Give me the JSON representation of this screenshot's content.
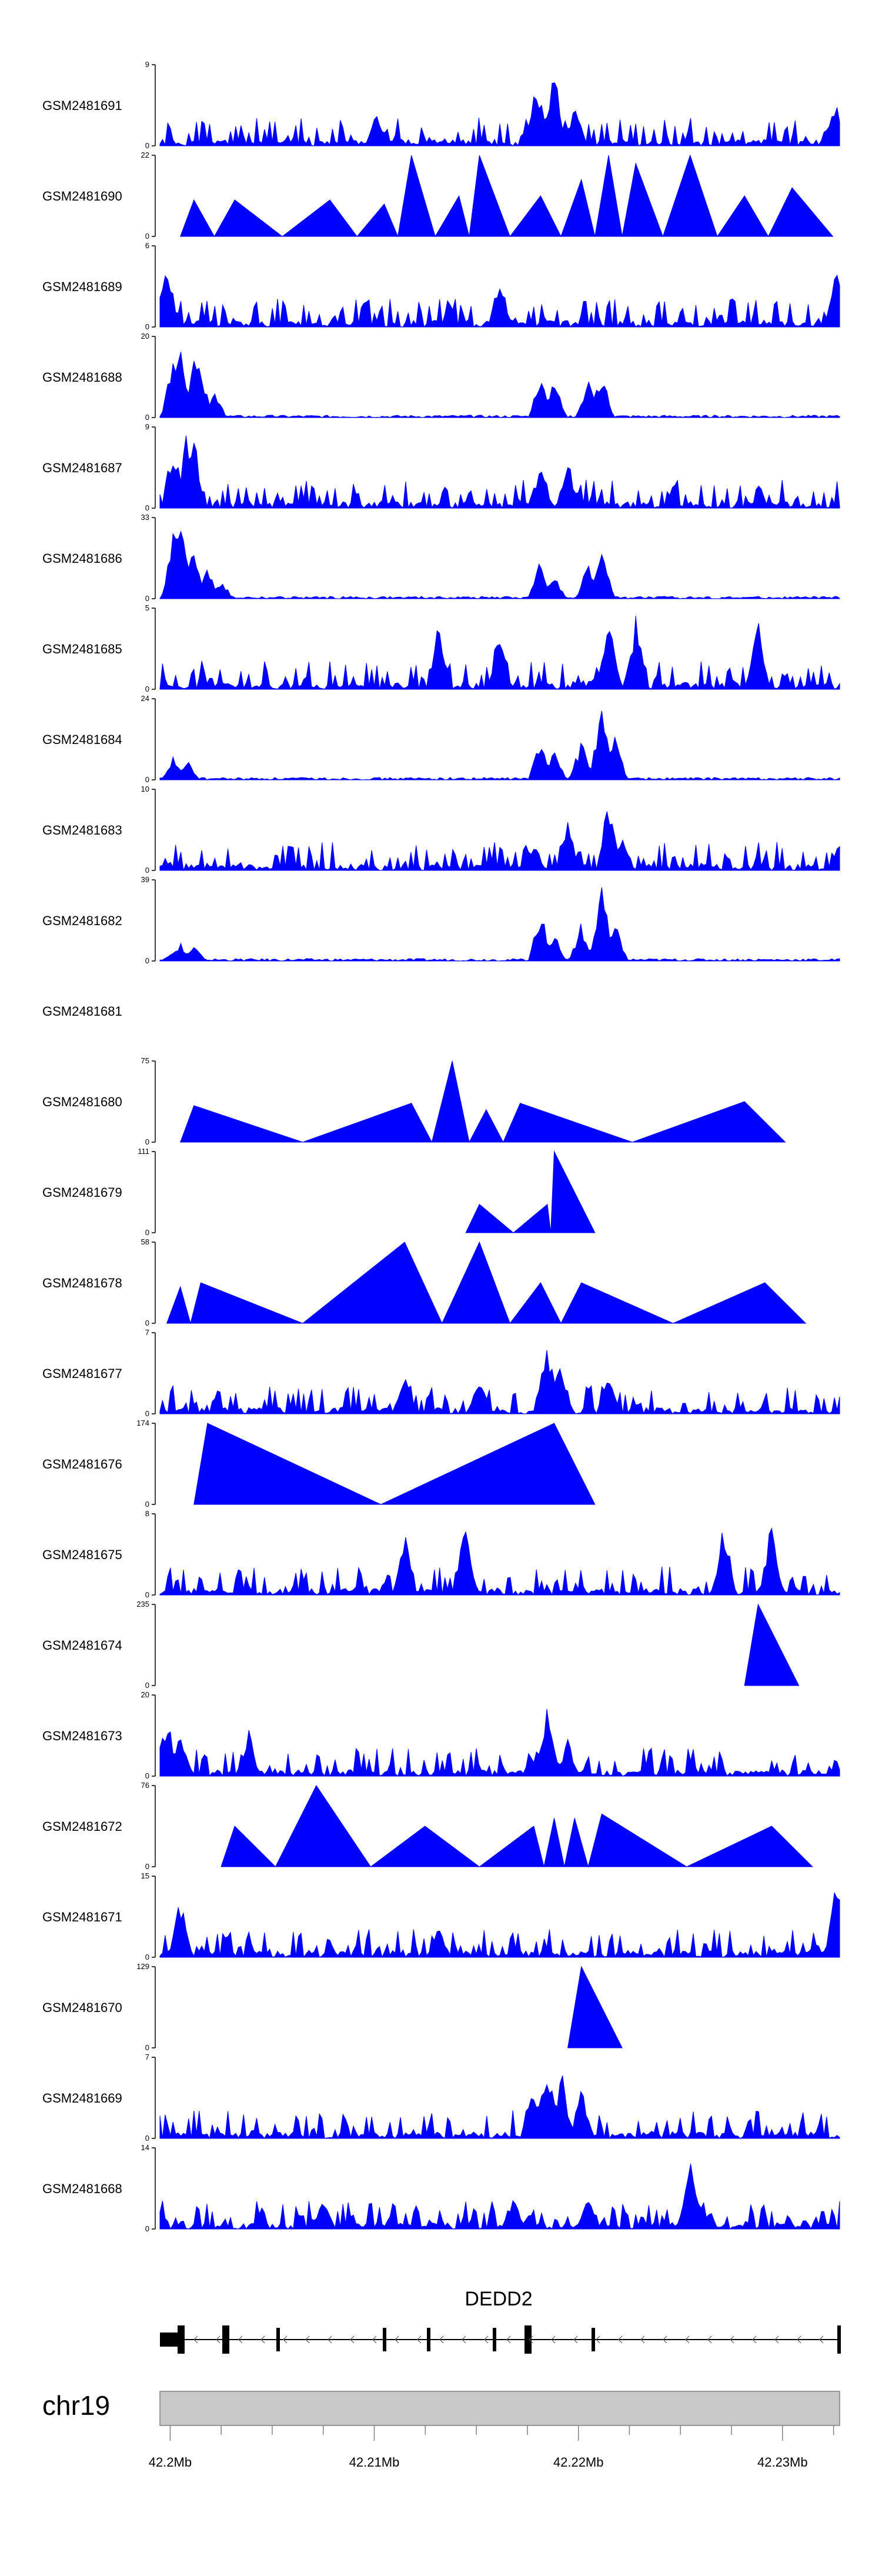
{
  "chart_data": {
    "type": "area",
    "title": "",
    "description_tracks": "Coverage tracks per sample over chr19 region",
    "tracks": [
      {
        "name": "GSM2481691",
        "ymax": 9,
        "profile": "noisy",
        "seed": 11,
        "peaks": [
          [
            0.555,
            0.9
          ],
          [
            0.58,
            1.0
          ],
          [
            0.61,
            0.55
          ],
          [
            0.995,
            0.6
          ],
          [
            0.32,
            0.45
          ]
        ]
      },
      {
        "name": "GSM2481690",
        "ymax": 22,
        "profile": "tent",
        "seed": 12,
        "peaks": [
          [
            0.05,
            0.45
          ],
          [
            0.11,
            0.45
          ],
          [
            0.25,
            0.45
          ],
          [
            0.33,
            0.4
          ],
          [
            0.37,
            1.0
          ],
          [
            0.44,
            0.5
          ],
          [
            0.47,
            1.0
          ],
          [
            0.56,
            0.5
          ],
          [
            0.62,
            0.7
          ],
          [
            0.66,
            1.0
          ],
          [
            0.7,
            0.9
          ],
          [
            0.78,
            1.0
          ],
          [
            0.86,
            0.5
          ],
          [
            0.93,
            0.6
          ]
        ]
      },
      {
        "name": "GSM2481689",
        "ymax": 6,
        "profile": "noisy",
        "seed": 13,
        "peaks": [
          [
            0.01,
            1.0
          ],
          [
            0.995,
            0.8
          ],
          [
            0.5,
            0.7
          ]
        ]
      },
      {
        "name": "GSM2481688",
        "ymax": 20,
        "profile": "cluster",
        "seed": 14,
        "peaks": [
          [
            0.02,
            0.8
          ],
          [
            0.03,
            1.0
          ],
          [
            0.05,
            0.75
          ],
          [
            0.06,
            0.7
          ],
          [
            0.08,
            0.35
          ],
          [
            0.56,
            0.6
          ],
          [
            0.58,
            0.55
          ],
          [
            0.63,
            0.5
          ],
          [
            0.65,
            0.6
          ]
        ]
      },
      {
        "name": "GSM2481687",
        "ymax": 9,
        "profile": "noisy",
        "seed": 15,
        "peaks": [
          [
            0.02,
            0.9
          ],
          [
            0.04,
            1.0
          ],
          [
            0.05,
            0.9
          ],
          [
            0.56,
            0.6
          ],
          [
            0.6,
            0.65
          ]
        ]
      },
      {
        "name": "GSM2481686",
        "ymax": 33,
        "profile": "cluster",
        "seed": 16,
        "peaks": [
          [
            0.02,
            0.9
          ],
          [
            0.03,
            1.0
          ],
          [
            0.05,
            0.75
          ],
          [
            0.07,
            0.4
          ],
          [
            0.09,
            0.25
          ],
          [
            0.56,
            0.5
          ],
          [
            0.58,
            0.3
          ],
          [
            0.63,
            0.45
          ],
          [
            0.65,
            0.7
          ]
        ]
      },
      {
        "name": "GSM2481685",
        "ymax": 5,
        "profile": "noisy",
        "seed": 17,
        "peaks": [
          [
            0.41,
            0.95
          ],
          [
            0.5,
            0.9
          ],
          [
            0.66,
            1.0
          ],
          [
            0.7,
            0.95
          ],
          [
            0.88,
            0.95
          ]
        ]
      },
      {
        "name": "GSM2481684",
        "ymax": 24,
        "profile": "cluster",
        "seed": 18,
        "peaks": [
          [
            0.02,
            0.3
          ],
          [
            0.04,
            0.25
          ],
          [
            0.56,
            0.6
          ],
          [
            0.58,
            0.4
          ],
          [
            0.62,
            0.5
          ],
          [
            0.65,
            1.0
          ],
          [
            0.67,
            0.6
          ]
        ]
      },
      {
        "name": "GSM2481683",
        "ymax": 10,
        "profile": "noisy",
        "seed": 19,
        "peaks": [
          [
            0.55,
            0.4
          ],
          [
            0.6,
            0.6
          ],
          [
            0.66,
            1.0
          ],
          [
            0.68,
            0.5
          ]
        ]
      },
      {
        "name": "GSM2481682",
        "ymax": 39,
        "profile": "cluster",
        "seed": 20,
        "peaks": [
          [
            0.02,
            0.15
          ],
          [
            0.03,
            0.25
          ],
          [
            0.05,
            0.2
          ],
          [
            0.56,
            0.65
          ],
          [
            0.58,
            0.35
          ],
          [
            0.62,
            0.5
          ],
          [
            0.65,
            1.0
          ],
          [
            0.67,
            0.5
          ]
        ]
      },
      {
        "name": "GSM2481681",
        "ymax": null,
        "profile": "empty",
        "seed": 21,
        "peaks": []
      },
      {
        "name": "GSM2481680",
        "ymax": 75,
        "profile": "tent",
        "seed": 22,
        "peaks": [
          [
            0.05,
            0.45
          ],
          [
            0.37,
            0.48
          ],
          [
            0.43,
            1.0
          ],
          [
            0.48,
            0.4
          ],
          [
            0.53,
            0.48
          ],
          [
            0.86,
            0.5
          ]
        ]
      },
      {
        "name": "GSM2481679",
        "ymax": 111,
        "profile": "tent",
        "seed": 23,
        "peaks": [
          [
            0.47,
            0.35
          ],
          [
            0.57,
            0.35
          ],
          [
            0.58,
            1.0
          ]
        ]
      },
      {
        "name": "GSM2481678",
        "ymax": 58,
        "profile": "tent",
        "seed": 24,
        "peaks": [
          [
            0.03,
            0.45
          ],
          [
            0.06,
            0.5
          ],
          [
            0.36,
            1.0
          ],
          [
            0.47,
            1.0
          ],
          [
            0.56,
            0.5
          ],
          [
            0.62,
            0.5
          ],
          [
            0.89,
            0.5
          ]
        ]
      },
      {
        "name": "GSM2481677",
        "ymax": 7,
        "profile": "noisy",
        "seed": 25,
        "peaks": [
          [
            0.57,
            1.0
          ],
          [
            0.59,
            0.7
          ],
          [
            0.47,
            0.5
          ],
          [
            0.36,
            0.5
          ],
          [
            0.66,
            0.5
          ]
        ]
      },
      {
        "name": "GSM2481676",
        "ymax": 174,
        "profile": "tent",
        "seed": 26,
        "peaks": [
          [
            0.07,
            1.0
          ],
          [
            0.58,
            1.0
          ]
        ]
      },
      {
        "name": "GSM2481675",
        "ymax": 8,
        "profile": "noisy",
        "seed": 27,
        "peaks": [
          [
            0.45,
            1.0
          ],
          [
            0.83,
            0.95
          ],
          [
            0.9,
            1.0
          ],
          [
            0.36,
            0.8
          ]
        ]
      },
      {
        "name": "GSM2481674",
        "ymax": 235,
        "profile": "tent",
        "seed": 28,
        "peaks": [
          [
            0.88,
            1.0
          ]
        ]
      },
      {
        "name": "GSM2481673",
        "ymax": 20,
        "profile": "noisy",
        "seed": 29,
        "peaks": [
          [
            0.01,
            0.8
          ],
          [
            0.03,
            0.6
          ],
          [
            0.57,
            1.0
          ],
          [
            0.6,
            0.5
          ],
          [
            0.13,
            0.6
          ]
        ]
      },
      {
        "name": "GSM2481672",
        "ymax": 76,
        "profile": "tent",
        "seed": 30,
        "peaks": [
          [
            0.11,
            0.5
          ],
          [
            0.23,
            1.0
          ],
          [
            0.39,
            0.5
          ],
          [
            0.55,
            0.5
          ],
          [
            0.58,
            0.6
          ],
          [
            0.61,
            0.6
          ],
          [
            0.65,
            0.65
          ],
          [
            0.9,
            0.5
          ]
        ]
      },
      {
        "name": "GSM2481671",
        "ymax": 15,
        "profile": "noisy",
        "seed": 31,
        "peaks": [
          [
            0.03,
            0.8
          ],
          [
            0.995,
            1.0
          ],
          [
            0.41,
            0.4
          ]
        ]
      },
      {
        "name": "GSM2481670",
        "ymax": 129,
        "profile": "tent",
        "seed": 32,
        "peaks": [
          [
            0.62,
            1.0
          ]
        ]
      },
      {
        "name": "GSM2481669",
        "ymax": 7,
        "profile": "noisy",
        "seed": 33,
        "peaks": [
          [
            0.57,
            1.0
          ],
          [
            0.59,
            0.9
          ],
          [
            0.55,
            0.7
          ],
          [
            0.62,
            0.65
          ]
        ]
      },
      {
        "name": "GSM2481668",
        "ymax": 14,
        "profile": "noisy",
        "seed": 34,
        "peaks": [
          [
            0.78,
            1.0
          ],
          [
            0.52,
            0.45
          ],
          [
            0.63,
            0.4
          ],
          [
            0.24,
            0.4
          ]
        ]
      }
    ],
    "gene": {
      "name": "DEDD2",
      "strand": "-"
    },
    "chromosome": "chr19",
    "x_ticks": [
      "42.2Mb",
      "42.21Mb",
      "42.22Mb",
      "42.23Mb"
    ],
    "x_tick_values_mb": [
      42.2,
      42.21,
      42.22,
      42.23
    ],
    "x_range_mb": [
      42.1995,
      42.2328
    ],
    "y_min_label": "0"
  },
  "colors": {
    "signal": "#0000ff",
    "axis": "#000000",
    "ideogram": "#c8c8c8"
  }
}
